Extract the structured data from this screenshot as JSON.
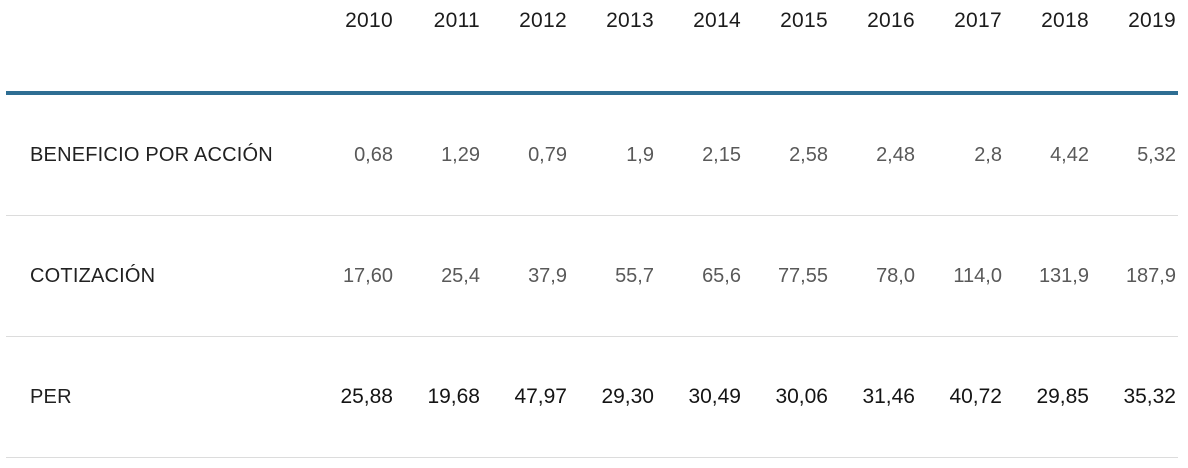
{
  "table": {
    "header": {
      "corner": "",
      "years": [
        "2010",
        "2011",
        "2012",
        "2013",
        "2014",
        "2015",
        "2016",
        "2017",
        "2018",
        "2019"
      ]
    },
    "rows": [
      {
        "label": "BENEFICIO POR ACCIÓN",
        "values": [
          "0,68",
          "1,29",
          "0,79",
          "1,9",
          "2,15",
          "2,58",
          "2,48",
          "2,8",
          "4,42",
          "5,32"
        ]
      },
      {
        "label": "COTIZACIÓN",
        "values": [
          "17,60",
          "25,4",
          "37,9",
          "55,7",
          "65,6",
          "77,55",
          "78,0",
          "114,0",
          "131,9",
          "187,9"
        ]
      },
      {
        "label": "PER",
        "values": [
          "25,88",
          "19,68",
          "47,97",
          "29,30",
          "30,49",
          "30,06",
          "31,46",
          "40,72",
          "29,85",
          "35,32"
        ]
      }
    ]
  },
  "colors": {
    "header_rule": "#2e6e93",
    "row_rule": "#dcdcdc",
    "value_muted": "#595959",
    "text_dark": "#212121",
    "value_strong": "#141414",
    "background": "#ffffff"
  },
  "chart_data": {
    "type": "table",
    "title": "",
    "columns": [
      "2010",
      "2011",
      "2012",
      "2013",
      "2014",
      "2015",
      "2016",
      "2017",
      "2018",
      "2019"
    ],
    "rows": [
      {
        "label": "BENEFICIO POR ACCIÓN",
        "values": [
          0.68,
          1.29,
          0.79,
          1.9,
          2.15,
          2.58,
          2.48,
          2.8,
          4.42,
          5.32
        ]
      },
      {
        "label": "COTIZACIÓN",
        "values": [
          17.6,
          25.4,
          37.9,
          55.7,
          65.6,
          77.55,
          78.0,
          114.0,
          131.9,
          187.9
        ]
      },
      {
        "label": "PER",
        "values": [
          25.88,
          19.68,
          47.97,
          29.3,
          30.49,
          30.06,
          31.46,
          40.72,
          29.85,
          35.32
        ]
      }
    ]
  }
}
